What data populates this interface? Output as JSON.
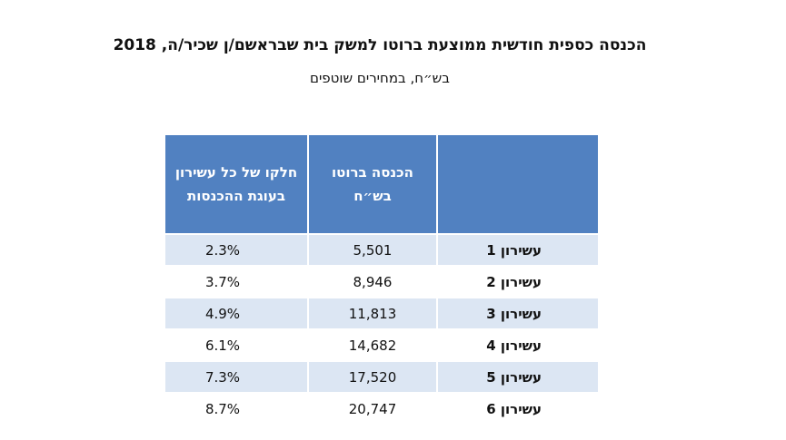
{
  "header": {
    "title": "הכנסה כספית חודשית ממוצעת ברוטו למשק בית שבראשם/ן שכיר/ה, 2018",
    "subtitle": "בש״ח, במחירים שוטפים"
  },
  "table": {
    "headers": [
      "הכנסה ברוטו בש״ח",
      "חלקו של כל עשירון בעוגת ההכנסות"
    ],
    "rows": [
      [
        "עשירון 1",
        "5,501",
        "2.3%"
      ],
      [
        "עשירון 2",
        "8,946",
        "3.7%"
      ],
      [
        "עשירון 3",
        "11,813",
        "4.9%"
      ],
      [
        "עשירון 4",
        "14,682",
        "6.1%"
      ],
      [
        "עשירון 5",
        "17,520",
        "7.3%"
      ],
      [
        "עשירון 6",
        "20,747",
        "8.7%"
      ]
    ]
  }
}
